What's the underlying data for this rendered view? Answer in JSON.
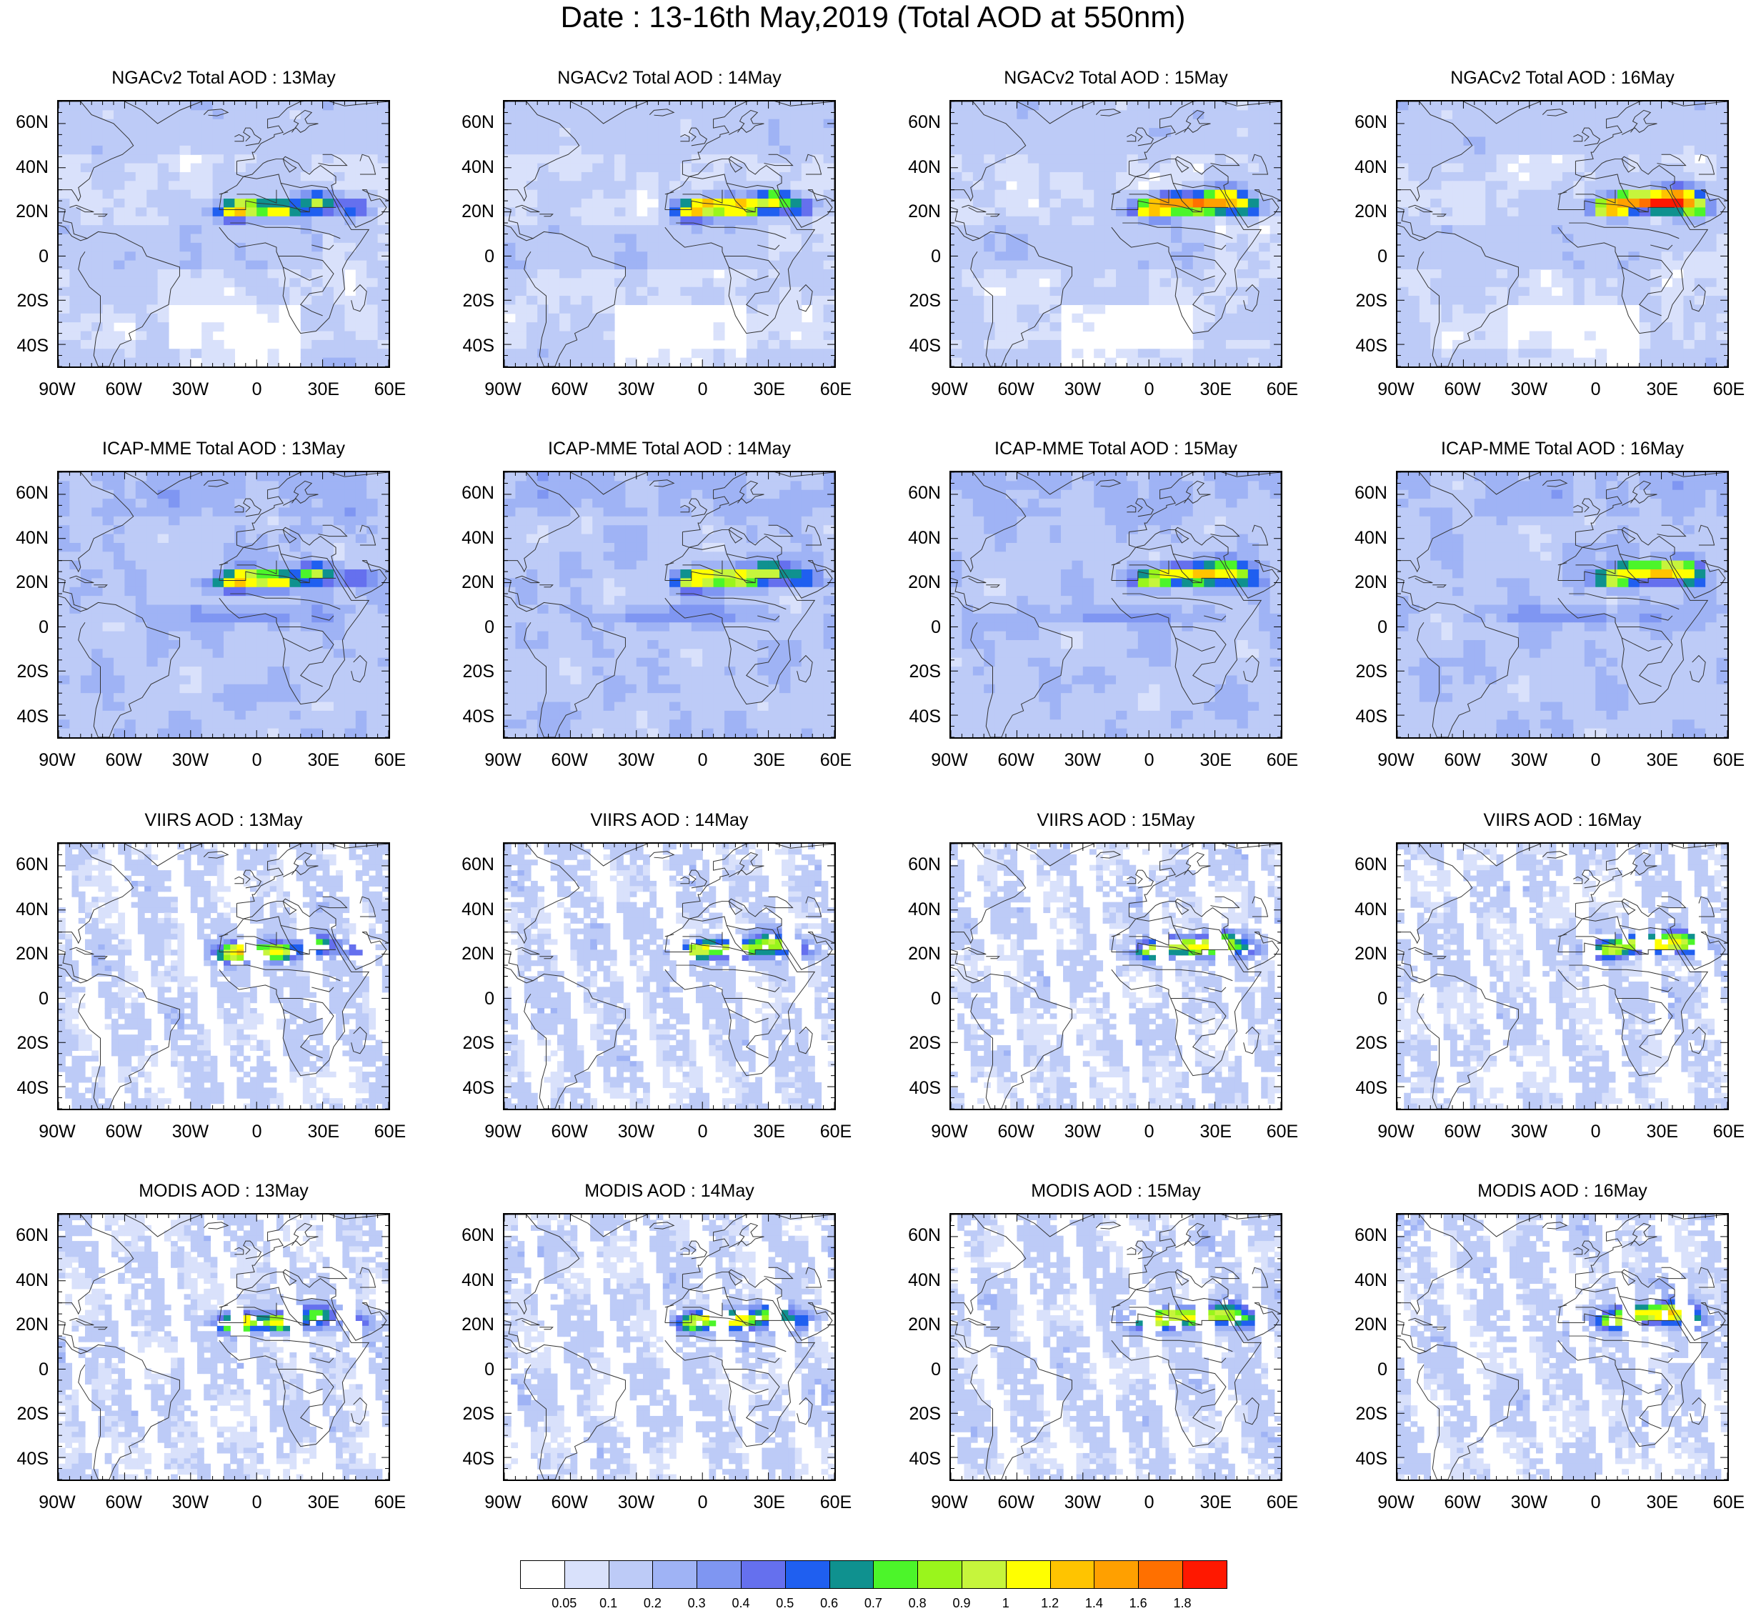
{
  "title": "Date : 13-16th May,2019 (Total AOD at 550nm)",
  "rows": [
    {
      "product": "NGACv2 Total AOD",
      "titles": [
        "NGACv2 Total AOD : 13May",
        "NGACv2 Total AOD : 14May",
        "NGACv2 Total AOD : 15May",
        "NGACv2 Total AOD : 16May"
      ]
    },
    {
      "product": "ICAP-MME Total AOD",
      "titles": [
        "ICAP-MME Total AOD : 13May",
        "ICAP-MME Total AOD : 14May",
        "ICAP-MME Total AOD : 15May",
        "ICAP-MME Total AOD : 16May"
      ]
    },
    {
      "product": "VIIRS AOD",
      "titles": [
        "VIIRS AOD : 13May",
        "VIIRS AOD : 14May",
        "VIIRS AOD : 15May",
        "VIIRS AOD : 16May"
      ]
    },
    {
      "product": "MODIS AOD",
      "titles": [
        "MODIS AOD : 13May",
        "MODIS AOD : 14May",
        "MODIS AOD : 15May",
        "MODIS AOD : 16May"
      ]
    }
  ],
  "lat_labels": [
    "60N",
    "40N",
    "20N",
    "0",
    "20S",
    "40S"
  ],
  "lon_labels": [
    "90W",
    "60W",
    "30W",
    "0",
    "30E",
    "60E"
  ],
  "map_extent": {
    "lon": [
      -90,
      60
    ],
    "lat": [
      -50,
      70
    ]
  },
  "colorbar": {
    "labels": [
      "0.05",
      "0.1",
      "0.2",
      "0.3",
      "0.4",
      "0.5",
      "0.6",
      "0.7",
      "0.8",
      "0.9",
      "1",
      "1.2",
      "1.4",
      "1.6",
      "1.8"
    ],
    "colors": [
      "#ffffff",
      "#d9e1fb",
      "#bdcbf7",
      "#9fb3f5",
      "#7f96f2",
      "#6570ee",
      "#1f5ff0",
      "#0f918f",
      "#4cf52a",
      "#9af51c",
      "#c6f53c",
      "#ffff00",
      "#ffc400",
      "#ffa000",
      "#ff7000",
      "#ff1800"
    ]
  }
}
